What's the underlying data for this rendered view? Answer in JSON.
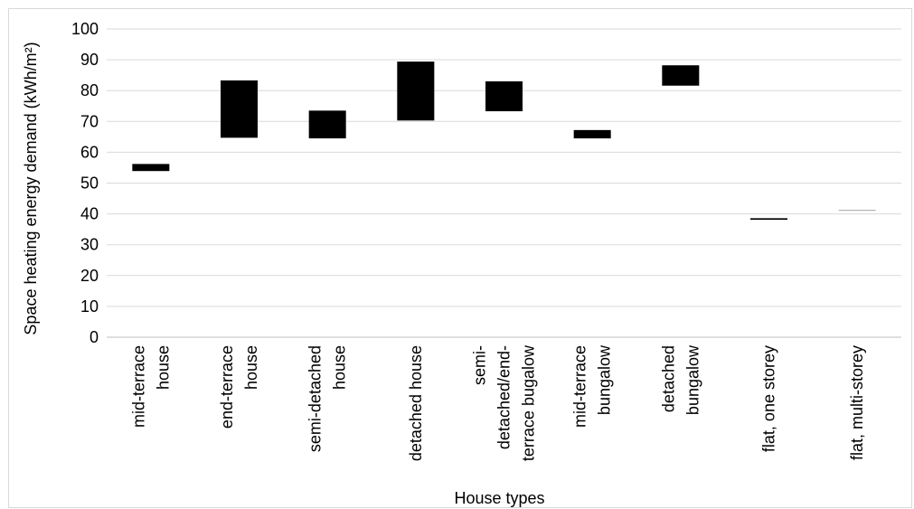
{
  "chart_data": {
    "type": "bar",
    "subtype": "floating-range",
    "title": "",
    "xlabel": "House types",
    "ylabel": "Space heating energy demand (kWh/m²)",
    "ylim": [
      0,
      100
    ],
    "yticks": [
      0,
      10,
      20,
      30,
      40,
      50,
      60,
      70,
      80,
      90,
      100
    ],
    "grid": true,
    "legend": "none",
    "categories": [
      [
        "mid-terrace",
        "house"
      ],
      [
        "end-terrace",
        "house"
      ],
      [
        "semi-detached",
        "house"
      ],
      [
        "detached house"
      ],
      [
        "semi-",
        "detached/end-",
        "terrace bugalow"
      ],
      [
        "mid-terrace",
        "bungalow"
      ],
      [
        "detached",
        "bungalow"
      ],
      [
        "flat, one storey"
      ],
      [
        "flat, multi-storey"
      ]
    ],
    "series": [
      {
        "low": [
          53.9,
          64.7,
          64.5,
          70.3,
          73.3,
          64.5,
          81.6,
          38.1,
          41.0
        ],
        "high": [
          56.2,
          83.3,
          73.5,
          89.4,
          83.0,
          67.2,
          88.2,
          38.6,
          41.3
        ]
      }
    ],
    "colors": {
      "bar": "#000000",
      "thin_bar": "#a6a6a6",
      "grid": "#d9d9d9",
      "axis": "#bfbfbf"
    }
  }
}
